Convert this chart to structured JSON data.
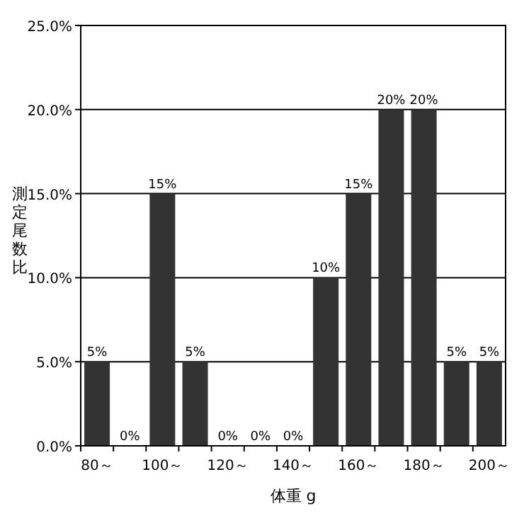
{
  "chart_data": {
    "type": "bar",
    "xlabel": "体重 g",
    "ylabel": "測定尾数比",
    "categories": [
      "80～",
      null,
      "100～",
      null,
      "120～",
      null,
      "140～",
      null,
      "160～",
      null,
      "180～",
      null,
      "200～"
    ],
    "values": [
      5,
      0,
      15,
      5,
      0,
      0,
      0,
      10,
      15,
      20,
      20,
      5,
      5
    ],
    "value_labels": [
      "5%",
      "0%",
      "15%",
      "5%",
      "0%",
      "0%",
      "0%",
      "10%",
      "15%",
      "20%",
      "20%",
      "5%",
      "5%"
    ],
    "color": "#333333",
    "ylim": [
      0,
      25
    ],
    "yticks": [
      {
        "value": 0,
        "label": "0.0%"
      },
      {
        "value": 5,
        "label": "5.0%"
      },
      {
        "value": 10,
        "label": "10.0%"
      },
      {
        "value": 15,
        "label": "15.0%"
      },
      {
        "value": 20,
        "label": "20.0%"
      },
      {
        "value": 25,
        "label": "25.0%"
      }
    ],
    "grid": "y"
  }
}
